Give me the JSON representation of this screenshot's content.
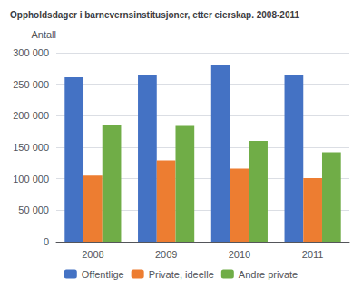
{
  "chart_data": {
    "type": "bar",
    "title": "Oppholdsdager i barnevernsinstitusjoner, etter eierskap. 2008-2011",
    "ylabel": "Antall",
    "categories": [
      "2008",
      "2009",
      "2010",
      "2011"
    ],
    "series": [
      {
        "name": "Offentlige",
        "color": "#4472C4",
        "values": [
          261000,
          264000,
          281000,
          265000
        ]
      },
      {
        "name": "Private, ideelle",
        "color": "#ED7D31",
        "values": [
          105000,
          129000,
          116000,
          101000
        ]
      },
      {
        "name": "Andre private",
        "color": "#70AD47",
        "values": [
          186000,
          184000,
          160000,
          142000
        ]
      }
    ],
    "ylim": [
      0,
      300000
    ],
    "yticks": [
      0,
      {
        "value": 50000,
        "label": "50 000"
      },
      {
        "value": 100000,
        "label": "100 000"
      },
      {
        "value": 150000,
        "label": "150 000"
      },
      {
        "value": 200000,
        "label": "200 000"
      },
      {
        "value": 250000,
        "label": "250 000"
      },
      {
        "value": 300000,
        "label": "300 000"
      }
    ],
    "grid": true,
    "legend": "bottom"
  }
}
